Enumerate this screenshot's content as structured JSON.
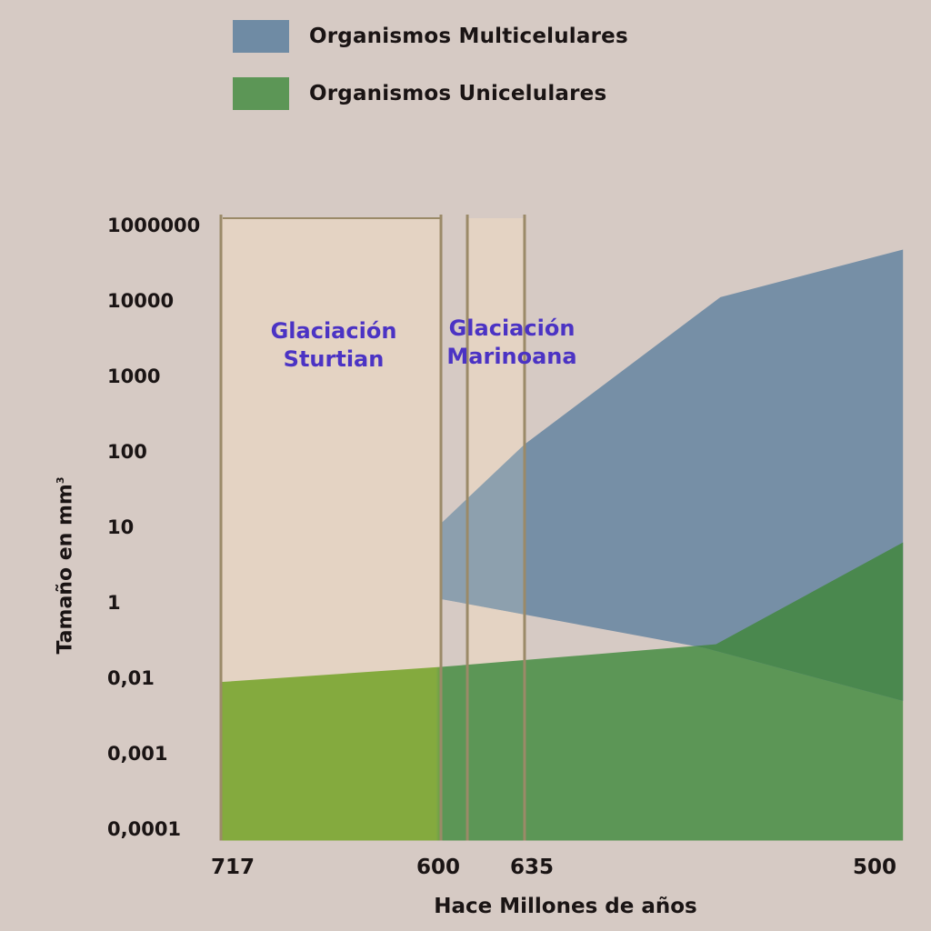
{
  "legend": {
    "items": [
      {
        "label": "Organismos Multicelulares",
        "color": "#6f8ba4"
      },
      {
        "label": "Organismos Unicelulares",
        "color": "#5c9656"
      }
    ]
  },
  "colors": {
    "background": "#d6cac4",
    "glaciation_fill": "#e4d3c3",
    "glaciation_border": "#9b8a68",
    "multicellular": "#6f8ba4",
    "unicellular": "#5c9656",
    "unicellular_early": "#84aa3e",
    "overlap": "#4a884e",
    "annotation_text": "#4b33c4"
  },
  "chart_data": {
    "type": "area",
    "title": "",
    "xlabel": "Hace Millones de años",
    "ylabel_main": "Tamaño en mm",
    "ylabel_sup": "3",
    "yticks": [
      "1000000",
      "10000",
      "1000",
      "100",
      "10",
      "1",
      "0,01",
      "0,001",
      "0,0001"
    ],
    "xticks": [
      "717",
      "600",
      "635",
      "500"
    ],
    "annotations": [
      {
        "lines": [
          "Glaciación",
          "Sturtian"
        ]
      },
      {
        "lines": [
          "Glaciación",
          "Marinoana"
        ]
      }
    ],
    "bands_note": "x positions use the printed tick order (717, 600, 635, 500) as a categorical axis: 717 → 0, 600 → 1, 635 → 1.38, 500 → 3.1; y uses tick index 0 (1000000) … 8 (0,0001)",
    "glaciations": [
      {
        "name": "Glaciación Sturtian",
        "x_start": 0,
        "x_end": 1.0,
        "y_top": 0
      },
      {
        "name": "Glaciación Marinoana",
        "x_start": 1.12,
        "x_end": 1.38,
        "y_top": 0
      }
    ],
    "series": [
      {
        "name": "Organismos Multicelulares",
        "upper": [
          [
            1.0,
            3.95
          ],
          [
            1.38,
            2.9
          ],
          [
            2.27,
            0.95
          ],
          [
            3.1,
            0.32
          ]
        ],
        "lower": [
          [
            1.0,
            4.95
          ],
          [
            2.2,
            5.6
          ],
          [
            3.1,
            6.3
          ]
        ]
      },
      {
        "name": "Organismos Unicelulares",
        "upper": [
          [
            0.0,
            6.05
          ],
          [
            1.0,
            5.85
          ],
          [
            2.25,
            5.55
          ],
          [
            3.1,
            4.2
          ]
        ],
        "lower": [
          [
            0.0,
            8.15
          ],
          [
            3.1,
            8.15
          ]
        ]
      }
    ]
  }
}
